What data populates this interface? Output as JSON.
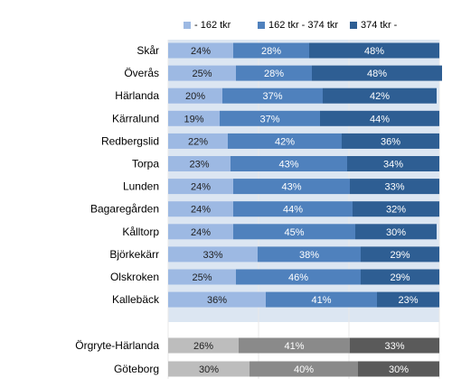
{
  "chart_data": {
    "type": "bar",
    "orientation": "horizontal",
    "stacked": "percent",
    "series": [
      {
        "name": "- 162 tkr",
        "color": "#9DB9E3"
      },
      {
        "name": "162 tkr - 374 tkr",
        "color": "#4F81BD"
      },
      {
        "name": "374 tkr -",
        "color": "#2E5E93"
      }
    ],
    "total_series_colors": [
      "#BDBDBD",
      "#8A8A8A",
      "#5A5A5A"
    ],
    "groups": [
      {
        "label": "Skår",
        "values": [
          24,
          28,
          48
        ]
      },
      {
        "label": "Överås",
        "values": [
          25,
          28,
          48
        ]
      },
      {
        "label": "Härlanda",
        "values": [
          20,
          37,
          42
        ]
      },
      {
        "label": "Kärralund",
        "values": [
          19,
          37,
          44
        ]
      },
      {
        "label": "Redbergslid",
        "values": [
          22,
          42,
          36
        ]
      },
      {
        "label": "Torpa",
        "values": [
          23,
          43,
          34
        ]
      },
      {
        "label": "Lunden",
        "values": [
          24,
          43,
          33
        ]
      },
      {
        "label": "Bagaregården",
        "values": [
          24,
          44,
          32
        ]
      },
      {
        "label": "Kålltorp",
        "values": [
          24,
          45,
          30
        ]
      },
      {
        "label": "Björkekärr",
        "values": [
          33,
          38,
          29
        ]
      },
      {
        "label": "Olskroken",
        "values": [
          25,
          46,
          29
        ]
      },
      {
        "label": "Kallebäck",
        "values": [
          36,
          41,
          23
        ]
      }
    ],
    "totals": [
      {
        "label": "Örgryte-Härlanda",
        "values": [
          26,
          41,
          33
        ]
      },
      {
        "label": "Göteborg",
        "values": [
          30,
          40,
          30
        ]
      }
    ],
    "value_suffix": "%",
    "xlim": [
      0,
      100
    ],
    "legend_position": "top"
  }
}
